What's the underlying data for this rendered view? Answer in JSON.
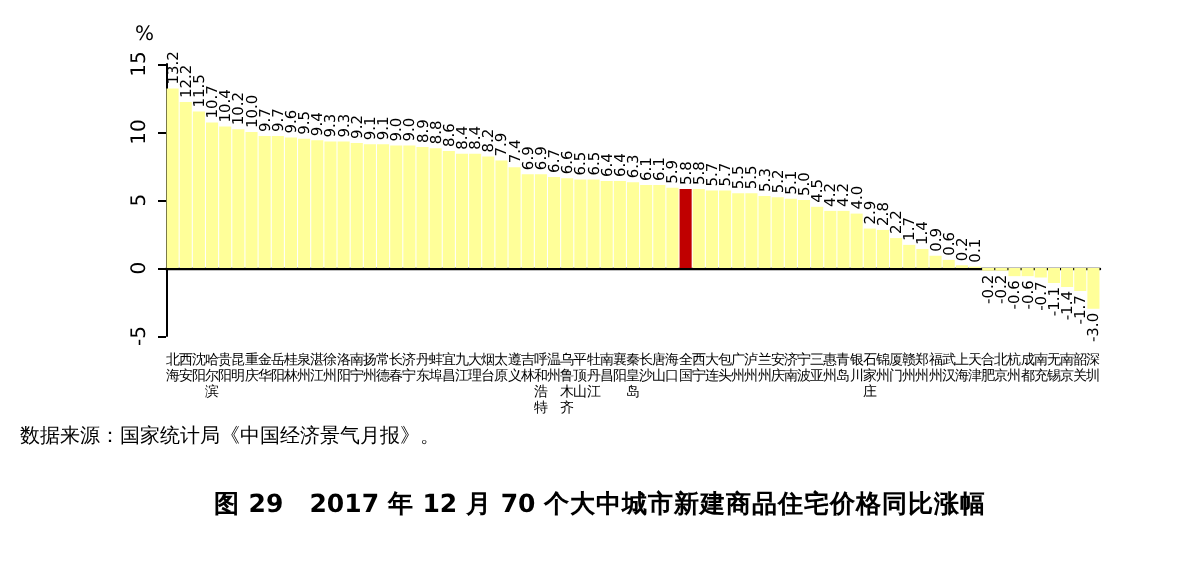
{
  "chart_data": {
    "type": "bar",
    "title": "图 29   2017 年 12 月 70 个大中城市新建商品住宅价格同比涨幅",
    "ylabel": "%",
    "annotations": [
      "数据来源：国家统计局《中国经济景气月报》。"
    ],
    "categories": [
      "北海",
      "西安",
      "沈阳",
      "哈尔滨",
      "贵阳",
      "昆明",
      "重庆",
      "金华",
      "岳阳",
      "桂林",
      "泉州",
      "湛江",
      "徐州",
      "洛阳",
      "南宁",
      "扬州",
      "常德",
      "长春",
      "济宁",
      "丹东",
      "蚌埠",
      "宜昌",
      "九江",
      "大理",
      "烟台",
      "太原",
      "遵义",
      "吉林",
      "呼和浩特",
      "温州",
      "乌鲁木齐",
      "平顶山",
      "牡丹江",
      "南昌",
      "襄阳",
      "秦皇岛",
      "长沙",
      "唐山",
      "海口",
      "全国",
      "西宁",
      "大连",
      "包头",
      "广州",
      "泸州",
      "兰州",
      "安庆",
      "济南",
      "宁波",
      "三亚",
      "惠州",
      "青岛",
      "银川",
      "石家庄",
      "锦州",
      "厦门",
      "赣州",
      "郑州",
      "福州",
      "武汉",
      "上海",
      "天津",
      "合肥",
      "北京",
      "杭州",
      "成都",
      "南充",
      "无锡",
      "南京",
      "韶关",
      "深圳"
    ],
    "values": [
      13.2,
      12.2,
      11.5,
      10.7,
      10.4,
      10.2,
      10.0,
      9.7,
      9.7,
      9.6,
      9.5,
      9.4,
      9.3,
      9.3,
      9.2,
      9.1,
      9.1,
      9.0,
      9.0,
      8.9,
      8.8,
      8.6,
      8.4,
      8.4,
      8.2,
      7.9,
      7.4,
      6.9,
      6.9,
      6.7,
      6.6,
      6.5,
      6.5,
      6.4,
      6.4,
      6.3,
      6.1,
      6.1,
      5.9,
      5.8,
      5.8,
      5.7,
      5.7,
      5.5,
      5.5,
      5.3,
      5.2,
      5.1,
      5.0,
      4.5,
      4.2,
      4.2,
      4.0,
      2.9,
      2.8,
      2.2,
      1.7,
      1.4,
      0.9,
      0.6,
      0.2,
      0.1,
      -0.2,
      -0.2,
      -0.6,
      -0.6,
      -0.7,
      -1.1,
      -1.4,
      -1.7,
      -3.0
    ],
    "colors": [
      "#ffff99",
      "#ffff99",
      "#ffff99",
      "#ffff99",
      "#ffff99",
      "#ffff99",
      "#ffff99",
      "#ffff99",
      "#ffff99",
      "#ffff99",
      "#ffff99",
      "#ffff99",
      "#ffff99",
      "#ffff99",
      "#ffff99",
      "#ffff99",
      "#ffff99",
      "#ffff99",
      "#ffff99",
      "#ffff99",
      "#ffff99",
      "#ffff99",
      "#ffff99",
      "#ffff99",
      "#ffff99",
      "#ffff99",
      "#ffff99",
      "#ffff99",
      "#ffff99",
      "#ffff99",
      "#ffff99",
      "#ffff99",
      "#ffff99",
      "#ffff99",
      "#ffff99",
      "#ffff99",
      "#ffff99",
      "#ffff99",
      "#ffff99",
      "#c00000",
      "#ffff99",
      "#ffff99",
      "#ffff99",
      "#ffff99",
      "#ffff99",
      "#ffff99",
      "#ffff99",
      "#ffff99",
      "#ffff99",
      "#ffff99",
      "#ffff99",
      "#ffff99",
      "#ffff99",
      "#ffff99",
      "#ffff99",
      "#ffff99",
      "#ffff99",
      "#ffff99",
      "#ffff99",
      "#ffff99",
      "#ffff99",
      "#ffff99",
      "#ffff99",
      "#ffff99",
      "#ffff99",
      "#ffff99",
      "#ffff99",
      "#ffff99",
      "#ffff99",
      "#ffff99",
      "#ffff99"
    ],
    "value_labels": [
      "13.2",
      "12.2",
      "11.5",
      "10.7",
      "10.4",
      "10.2",
      "10.0",
      "9.7",
      "9.7",
      "9.6",
      "9.5",
      "9.4",
      "9.3",
      "9.3",
      "9.2",
      "9.1",
      "9.1",
      "9.0",
      "9.0",
      "8.9",
      "8.8",
      "8.6",
      "8.4",
      "8.4",
      "8.2",
      "7.9",
      "7.4",
      "6.9",
      "6.9",
      "6.7",
      "6.6",
      "6.5",
      "6.5",
      "6.4",
      "6.4",
      "6.3",
      "6.1",
      "6.1",
      "5.9",
      "5.8",
      "5.8",
      "5.7",
      "5.7",
      "5.5",
      "5.5",
      "5.3",
      "5.2",
      "5.1",
      "5.0",
      "4.5",
      "4.2",
      "4.2",
      "4.0",
      "2.9",
      "2.8",
      "2.2",
      "1.7",
      "1.4",
      "0.9",
      "0.6",
      "0.2",
      "0.1",
      "-0.2",
      "-0.2",
      "-0.6",
      "-0.6",
      "-0.7",
      "-1.1",
      "-1.4",
      "-1.7",
      "-3.0"
    ],
    "ylim": [
      -5,
      15
    ],
    "yticks": [
      -5,
      0,
      5,
      10,
      15
    ]
  }
}
